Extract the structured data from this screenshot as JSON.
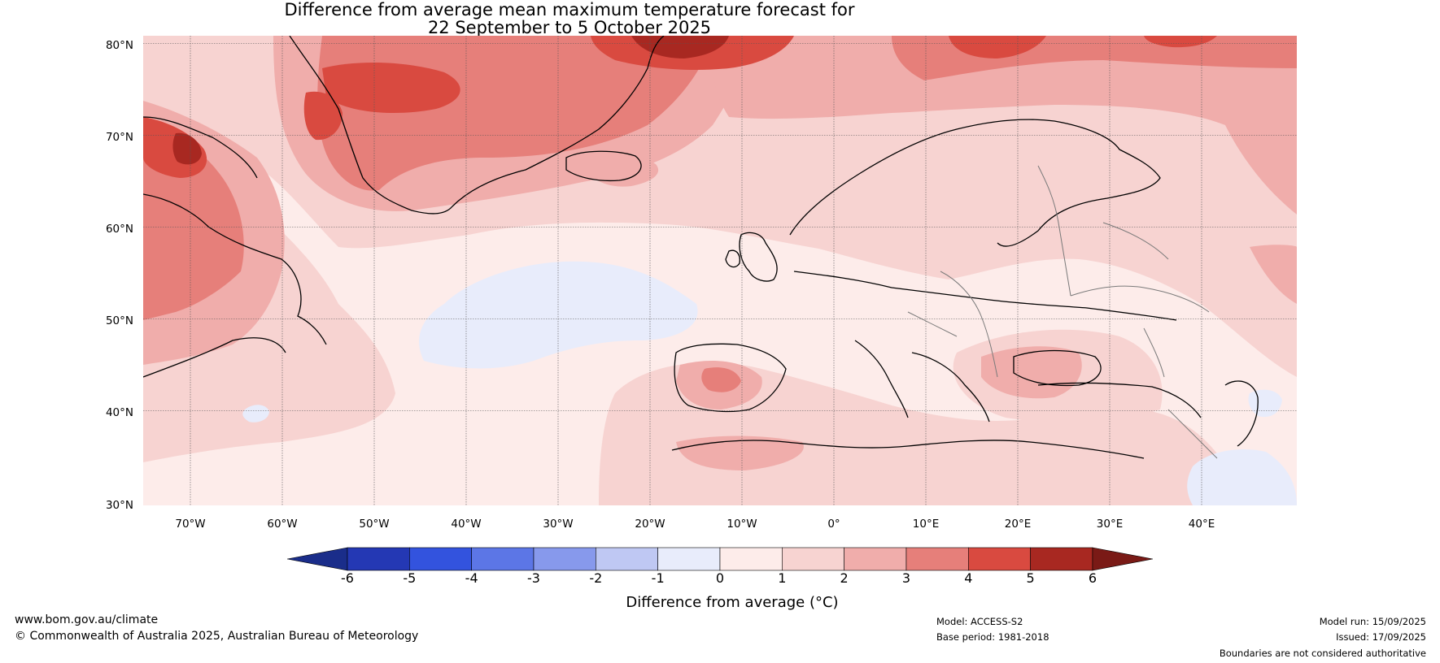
{
  "title_line1": "Difference from average mean maximum temperature forecast for",
  "title_line2": "22 September to 5 October 2025",
  "lat_labels": [
    "80°N",
    "70°N",
    "60°N",
    "50°N",
    "40°N",
    "30°N"
  ],
  "lon_labels": [
    "70°W",
    "60°W",
    "50°W",
    "40°W",
    "30°W",
    "20°W",
    "10°W",
    "0°",
    "10°E",
    "20°E",
    "30°E",
    "40°E"
  ],
  "colorbar": {
    "ticks": [
      "-6",
      "-5",
      "-4",
      "-3",
      "-2",
      "-1",
      "0",
      "1",
      "2",
      "3",
      "4",
      "5",
      "6"
    ],
    "colors": [
      "#1a2d8a",
      "#2438b4",
      "#3353de",
      "#5c76e6",
      "#8799ec",
      "#bfc8f3",
      "#e8ecfb",
      "#fdecea",
      "#f7d3d1",
      "#f0adab",
      "#e67f7a",
      "#d94a40",
      "#a82821",
      "#7a1a16"
    ],
    "label": "Difference from average (°C)"
  },
  "map": {
    "region": "North Atlantic and Europe",
    "lat_range": [
      30,
      80
    ],
    "lon_range": [
      -75,
      50
    ]
  },
  "footer": {
    "website": "www.bom.gov.au/climate",
    "copyright": "© Commonwealth of Australia 2025, Australian Bureau of Meteorology",
    "model": "Model: ACCESS-S2",
    "base_period": "Base period: 1981-2018",
    "model_run": "Model run: 15/09/2025",
    "issued": "Issued: 17/09/2025",
    "disclaimer": "Boundaries are not considered authoritative"
  }
}
